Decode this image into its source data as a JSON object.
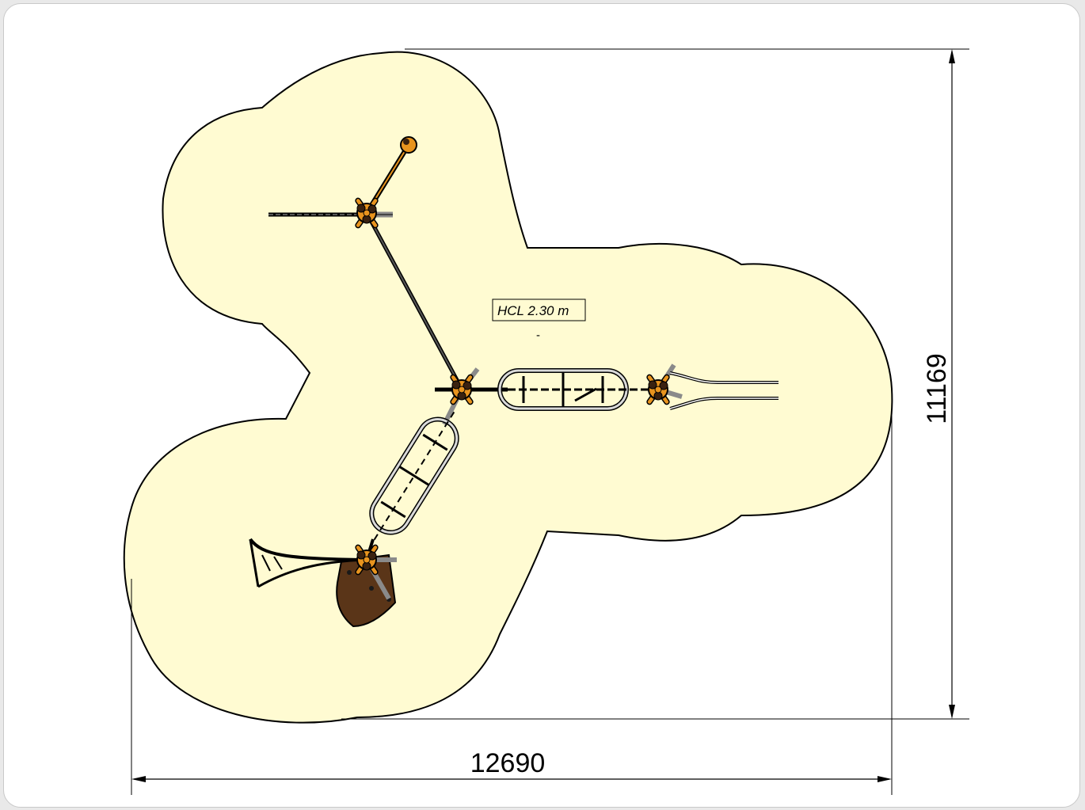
{
  "plan": {
    "height_label": "HCL 2.30 m",
    "height_sublabel": "-"
  },
  "dimensions": {
    "width": "12690",
    "height": "11169"
  },
  "colors": {
    "safety_surface": "#fffbd2",
    "outline": "#000000",
    "rope_orange": "#e8941e",
    "steel_grey": "#8a8a8a",
    "platform_brown": "#5a3518",
    "background": "#ffffff"
  }
}
